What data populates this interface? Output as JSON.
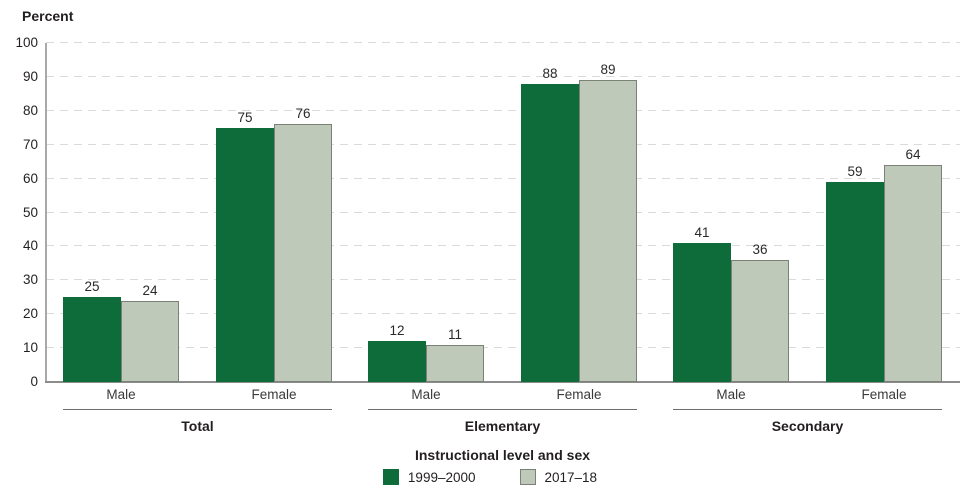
{
  "chart_data": {
    "type": "bar",
    "title": "",
    "ylabel": "Percent",
    "xlabel": "Instructional level and sex",
    "ylim": [
      0,
      100
    ],
    "ytick_step": 10,
    "yticks": [
      0,
      10,
      20,
      30,
      40,
      50,
      60,
      70,
      80,
      90,
      100
    ],
    "grid": "horizontal-dashed",
    "legend_position": "bottom-center",
    "categories": [
      "Male",
      "Female"
    ],
    "groups": [
      {
        "label": "Total",
        "bars": [
          {
            "category": "Male",
            "values": [
              25,
              24
            ]
          },
          {
            "category": "Female",
            "values": [
              75,
              76
            ]
          }
        ]
      },
      {
        "label": "Elementary",
        "bars": [
          {
            "category": "Male",
            "values": [
              12,
              11
            ]
          },
          {
            "category": "Female",
            "values": [
              88,
              89
            ]
          }
        ]
      },
      {
        "label": "Secondary",
        "bars": [
          {
            "category": "Male",
            "values": [
              41,
              36
            ]
          },
          {
            "category": "Female",
            "values": [
              59,
              64
            ]
          }
        ]
      }
    ],
    "series": [
      {
        "name": "1999–2000",
        "color": "#0e6b3a",
        "border": "#0e6b3a"
      },
      {
        "name": "2017–18",
        "color": "#bec9ba",
        "border": "#7c8178"
      }
    ],
    "colors": {
      "gridline": "#dadada",
      "axis": "#a9a9a9",
      "baseline": "#8c8c8c",
      "text": "#231f20"
    }
  }
}
